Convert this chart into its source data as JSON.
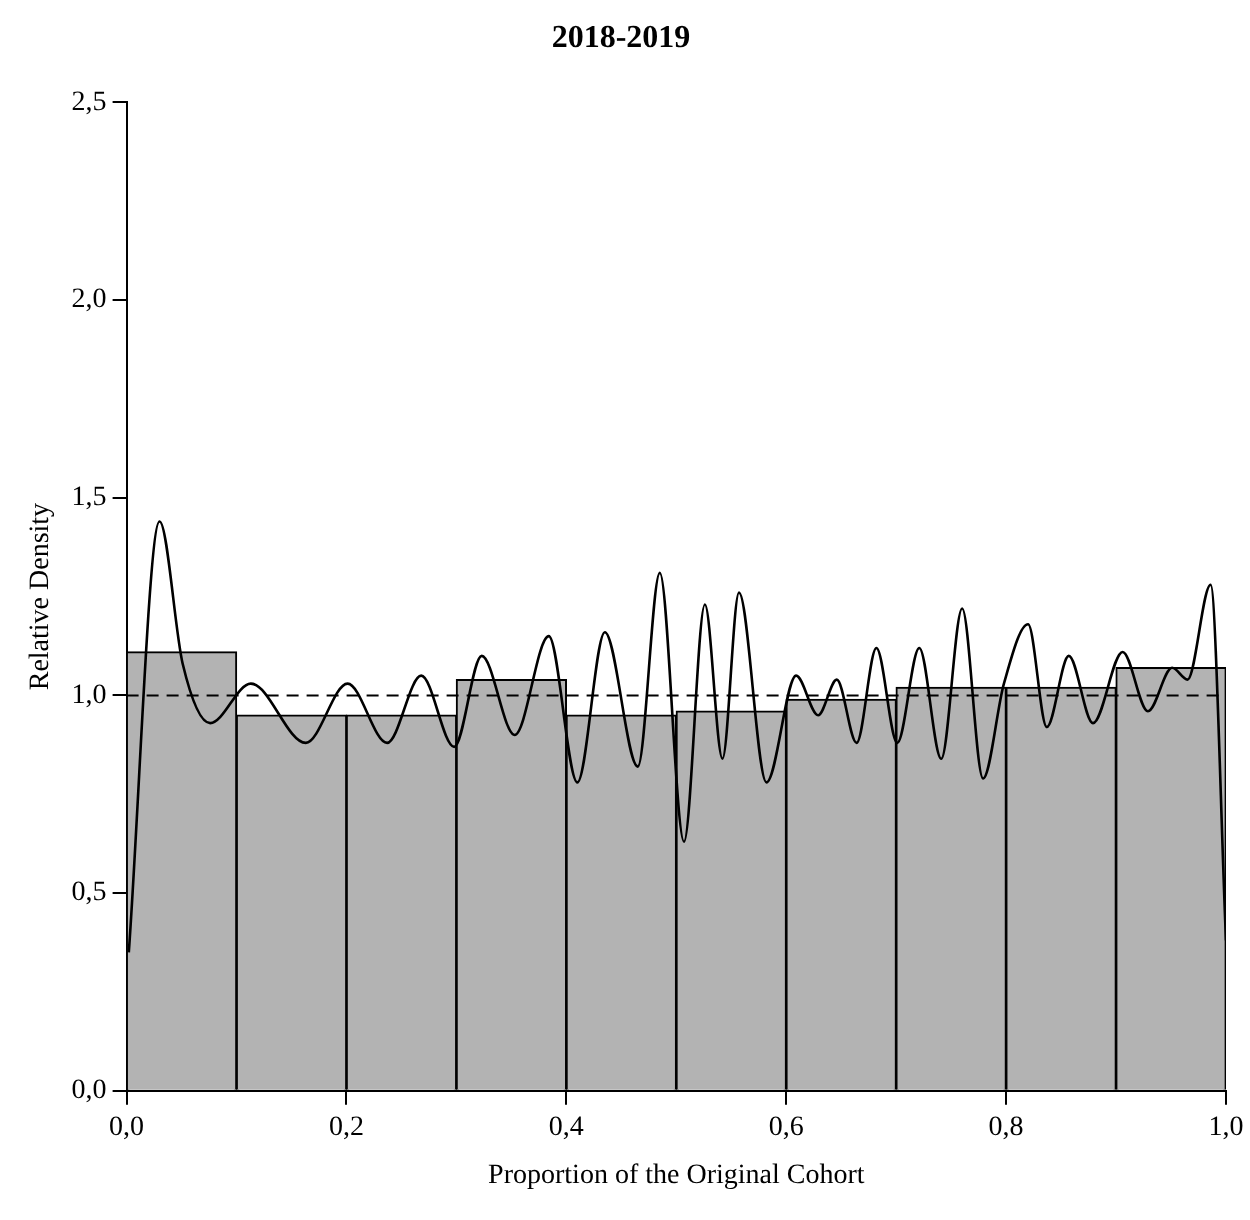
{
  "chart_data": {
    "type": "histogram",
    "title": "2018-2019",
    "xlabel": "Proportion of the Original Cohort",
    "ylabel": "Relative Density",
    "bins": [
      0,
      0.1,
      0.2,
      0.3,
      0.4,
      0.5,
      0.6,
      0.7,
      0.8,
      0.9,
      1.0
    ],
    "values": [
      1.11,
      0.95,
      0.95,
      1.04,
      0.95,
      0.96,
      0.99,
      1.02,
      1.02,
      1.07
    ],
    "color": "#b3b3b3",
    "series": [
      {
        "type": "line",
        "color": "#000000",
        "x": [
          0.002,
          0.03,
          0.051,
          0.076,
          0.113,
          0.163,
          0.201,
          0.237,
          0.268,
          0.298,
          0.323,
          0.353,
          0.384,
          0.41,
          0.435,
          0.465,
          0.485,
          0.507,
          0.526,
          0.542,
          0.557,
          0.582,
          0.609,
          0.629,
          0.646,
          0.664,
          0.682,
          0.701,
          0.721,
          0.741,
          0.76,
          0.779,
          0.798,
          0.82,
          0.837,
          0.857,
          0.879,
          0.906,
          0.929,
          0.951,
          0.965,
          0.986,
          1.0
        ],
        "values": [
          0.35,
          1.44,
          1.08,
          0.93,
          1.03,
          0.88,
          1.03,
          0.88,
          1.05,
          0.87,
          1.1,
          0.9,
          1.15,
          0.78,
          1.16,
          0.82,
          1.31,
          0.63,
          1.23,
          0.84,
          1.26,
          0.78,
          1.05,
          0.95,
          1.04,
          0.88,
          1.12,
          0.88,
          1.12,
          0.84,
          1.22,
          0.79,
          1.03,
          1.18,
          0.92,
          1.1,
          0.93,
          1.11,
          0.96,
          1.07,
          1.04,
          1.28,
          0.38
        ]
      }
    ],
    "ref_lines": [
      {
        "axis": "y",
        "value": 1,
        "line_style": "dashed",
        "color": "#000000"
      }
    ],
    "xlim": [
      0,
      1
    ],
    "xticks": [
      {
        "value": 0,
        "label": "0,0"
      },
      {
        "value": 0.2,
        "label": "0,2"
      },
      {
        "value": 0.4,
        "label": "0,4"
      },
      {
        "value": 0.6,
        "label": "0,6"
      },
      {
        "value": 0.8,
        "label": "0,8"
      },
      {
        "value": 1,
        "label": "1,0"
      }
    ],
    "ylim": [
      0,
      2.5
    ],
    "yticks": [
      {
        "value": 0,
        "label": "0,0"
      },
      {
        "value": 0.5,
        "label": "0,5"
      },
      {
        "value": 1,
        "label": "1,0"
      },
      {
        "value": 1.5,
        "label": "1,5"
      },
      {
        "value": 2,
        "label": "2,0"
      },
      {
        "value": 2.5,
        "label": "2,5"
      }
    ]
  }
}
